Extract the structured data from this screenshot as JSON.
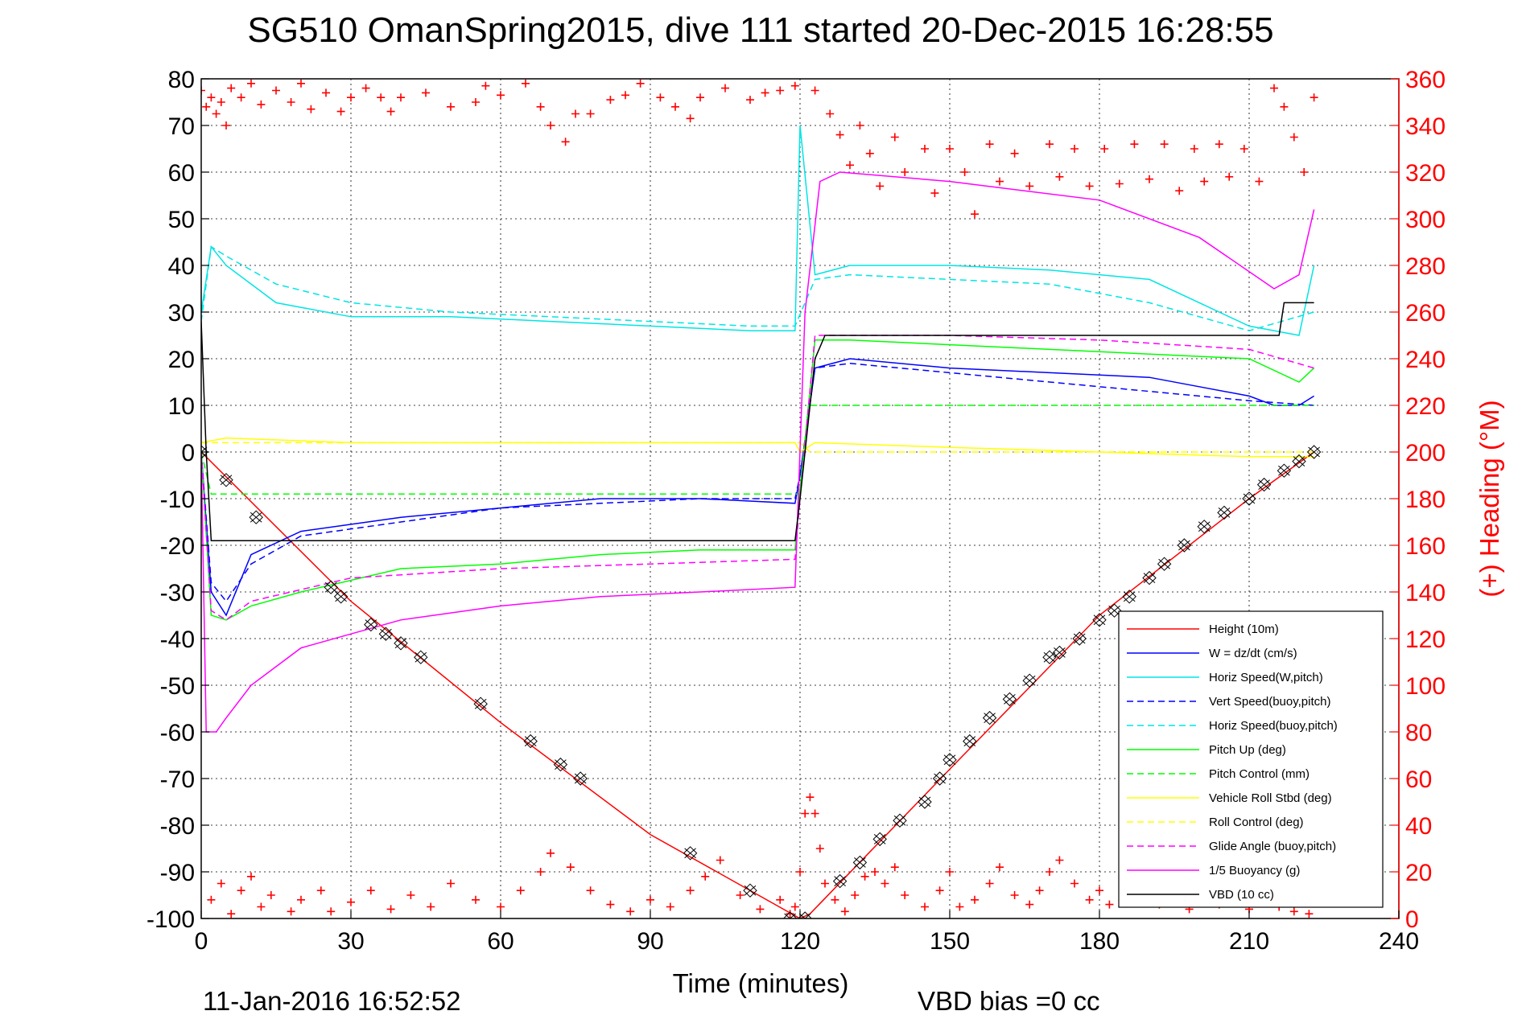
{
  "chart_data": {
    "type": "line",
    "title": "SG510 OmanSpring2015, dive 111 started 20-Dec-2015 16:28:55",
    "xlabel": "Time (minutes)",
    "ylabel": "",
    "y2label": "(+) Heading (°M)",
    "xlim": [
      0,
      240
    ],
    "ylim": [
      -100,
      80
    ],
    "y2lim": [
      0,
      360
    ],
    "x_ticks": [
      "0",
      "30",
      "60",
      "90",
      "120",
      "150",
      "180",
      "210",
      "240"
    ],
    "y_ticks": [
      "80",
      "70",
      "60",
      "50",
      "40",
      "30",
      "20",
      "10",
      "0",
      "-10",
      "-20",
      "-30",
      "-40",
      "-50",
      "-60",
      "-70",
      "-80",
      "-90",
      "-100"
    ],
    "y2_ticks": [
      "360",
      "340",
      "320",
      "300",
      "280",
      "260",
      "240",
      "220",
      "200",
      "180",
      "160",
      "140",
      "120",
      "100",
      "80",
      "60",
      "40",
      "20",
      "0"
    ],
    "grid": true,
    "legend_position": "bottom-right",
    "footer_date": "11-Jan-2016 16:52:52",
    "footer_bias": "VBD bias =0 cc",
    "series": [
      {
        "name": "Height (10m)",
        "color": "#ff0000",
        "style": "solid",
        "x": [
          0,
          30,
          60,
          90,
          120,
          122,
          150,
          180,
          210,
          223
        ],
        "y": [
          0,
          -32,
          -58,
          -82,
          -100,
          -99,
          -68,
          -35,
          -10,
          0
        ]
      },
      {
        "name": "W = dz/dt (cm/s)",
        "color": "#0000ff",
        "style": "solid",
        "x": [
          0,
          2,
          5,
          10,
          20,
          40,
          60,
          80,
          100,
          119,
          120,
          123,
          130,
          150,
          170,
          190,
          200,
          210,
          215,
          220,
          223
        ],
        "y": [
          0,
          -30,
          -35,
          -22,
          -17,
          -14,
          -12,
          -10,
          -10,
          -11,
          -5,
          18,
          20,
          18,
          17,
          16,
          14,
          12,
          10,
          10,
          12
        ]
      },
      {
        "name": "Horiz Speed(W,pitch)",
        "color": "#00e5e5",
        "style": "solid",
        "x": [
          0,
          2,
          5,
          15,
          30,
          50,
          70,
          90,
          110,
          119,
          120,
          123,
          130,
          150,
          170,
          190,
          210,
          220,
          223
        ],
        "y": [
          30,
          44,
          40,
          32,
          29,
          29,
          28,
          27,
          26,
          26,
          70,
          38,
          40,
          40,
          39,
          37,
          27,
          25,
          40
        ]
      },
      {
        "name": "Vert Speed(buoy,pitch)",
        "color": "#0000ff",
        "style": "dash",
        "x": [
          0,
          2,
          5,
          10,
          20,
          40,
          60,
          80,
          100,
          119,
          120,
          123,
          130,
          150,
          170,
          190,
          210,
          223
        ],
        "y": [
          0,
          -28,
          -32,
          -24,
          -18,
          -15,
          -12,
          -11,
          -10,
          -10,
          -5,
          18,
          19,
          17,
          15,
          13,
          11,
          10
        ]
      },
      {
        "name": "Horiz Speed(buoy,pitch)",
        "color": "#00e5e5",
        "style": "dash",
        "x": [
          0,
          2,
          5,
          15,
          30,
          50,
          70,
          90,
          110,
          119,
          123,
          130,
          150,
          170,
          190,
          210,
          223
        ],
        "y": [
          28,
          44,
          42,
          36,
          32,
          30,
          29,
          28,
          27,
          27,
          37,
          38,
          37,
          36,
          32,
          26,
          30
        ]
      },
      {
        "name": "Pitch Up (deg)",
        "color": "#00ff00",
        "style": "solid",
        "x": [
          0,
          2,
          5,
          10,
          20,
          40,
          60,
          80,
          100,
          119,
          120,
          123,
          130,
          150,
          170,
          190,
          210,
          220,
          223
        ],
        "y": [
          0,
          -35,
          -36,
          -33,
          -30,
          -25,
          -24,
          -22,
          -21,
          -21,
          -8,
          24,
          24,
          23,
          22,
          21,
          20,
          15,
          18
        ]
      },
      {
        "name": "Pitch Control (mm)",
        "color": "#00ff00",
        "style": "dash",
        "x": [
          0,
          2,
          120,
          122,
          223
        ],
        "y": [
          0,
          -9,
          -9,
          10,
          10
        ]
      },
      {
        "name": "Vehicle Roll Stbd (deg)",
        "color": "#ffff00",
        "style": "solid",
        "x": [
          0,
          5,
          30,
          60,
          90,
          119,
          120,
          123,
          150,
          180,
          210,
          223
        ],
        "y": [
          2,
          3,
          2,
          2,
          2,
          2,
          0,
          2,
          1,
          0,
          -1,
          -1
        ]
      },
      {
        "name": "Roll Control (deg)",
        "color": "#ffff00",
        "style": "dash",
        "x": [
          0,
          120,
          122,
          223
        ],
        "y": [
          2,
          2,
          0,
          0
        ]
      },
      {
        "name": "Glide Angle (buoy,pitch)",
        "color": "#ff00ff",
        "style": "dash",
        "x": [
          0,
          2,
          5,
          10,
          30,
          60,
          90,
          119,
          120,
          123,
          150,
          180,
          210,
          223
        ],
        "y": [
          0,
          -34,
          -36,
          -32,
          -27,
          -25,
          -24,
          -23,
          -10,
          25,
          25,
          24,
          22,
          18
        ]
      },
      {
        "name": "1/5 Buoyancy (g)",
        "color": "#ff00ff",
        "style": "solid",
        "x": [
          0,
          1,
          3,
          5,
          10,
          20,
          40,
          60,
          80,
          100,
          119,
          121,
          124,
          128,
          150,
          180,
          200,
          215,
          220,
          223
        ],
        "y": [
          0,
          -60,
          -60,
          -57,
          -50,
          -42,
          -36,
          -33,
          -31,
          -30,
          -29,
          30,
          58,
          60,
          58,
          54,
          46,
          35,
          38,
          52
        ]
      },
      {
        "name": "VBD (10 cc)",
        "color": "#000000",
        "style": "solid",
        "x": [
          0,
          1,
          2,
          119,
          120,
          123,
          125,
          216,
          217,
          223
        ],
        "y": [
          28,
          0,
          -19,
          -19,
          -10,
          20,
          25,
          25,
          32,
          32
        ]
      }
    ],
    "heading_series": {
      "name": "Heading",
      "color": "#ff0000",
      "points": [
        [
          0,
          355
        ],
        [
          1,
          348
        ],
        [
          2,
          352
        ],
        [
          3,
          345
        ],
        [
          4,
          350
        ],
        [
          5,
          340
        ],
        [
          6,
          356
        ],
        [
          8,
          352
        ],
        [
          10,
          358
        ],
        [
          12,
          349
        ],
        [
          15,
          355
        ],
        [
          18,
          350
        ],
        [
          20,
          358
        ],
        [
          22,
          347
        ],
        [
          25,
          354
        ],
        [
          28,
          346
        ],
        [
          30,
          352
        ],
        [
          33,
          356
        ],
        [
          36,
          352
        ],
        [
          38,
          346
        ],
        [
          40,
          352
        ],
        [
          45,
          354
        ],
        [
          50,
          348
        ],
        [
          55,
          350
        ],
        [
          57,
          357
        ],
        [
          60,
          353
        ],
        [
          65,
          358
        ],
        [
          68,
          348
        ],
        [
          70,
          340
        ],
        [
          73,
          333
        ],
        [
          75,
          345
        ],
        [
          78,
          345
        ],
        [
          82,
          351
        ],
        [
          85,
          353
        ],
        [
          88,
          358
        ],
        [
          92,
          352
        ],
        [
          95,
          348
        ],
        [
          98,
          343
        ],
        [
          100,
          352
        ],
        [
          105,
          356
        ],
        [
          110,
          351
        ],
        [
          113,
          354
        ],
        [
          116,
          355
        ],
        [
          119,
          357
        ],
        [
          123,
          355
        ],
        [
          126,
          345
        ],
        [
          128,
          336
        ],
        [
          130,
          323
        ],
        [
          132,
          340
        ],
        [
          134,
          328
        ],
        [
          136,
          314
        ],
        [
          139,
          335
        ],
        [
          141,
          320
        ],
        [
          145,
          330
        ],
        [
          147,
          311
        ],
        [
          150,
          330
        ],
        [
          153,
          320
        ],
        [
          155,
          302
        ],
        [
          158,
          332
        ],
        [
          160,
          316
        ],
        [
          163,
          328
        ],
        [
          166,
          314
        ],
        [
          170,
          332
        ],
        [
          172,
          318
        ],
        [
          175,
          330
        ],
        [
          178,
          314
        ],
        [
          181,
          330
        ],
        [
          184,
          315
        ],
        [
          187,
          332
        ],
        [
          190,
          317
        ],
        [
          193,
          332
        ],
        [
          196,
          312
        ],
        [
          199,
          330
        ],
        [
          201,
          316
        ],
        [
          204,
          332
        ],
        [
          206,
          318
        ],
        [
          209,
          330
        ],
        [
          212,
          316
        ],
        [
          215,
          356
        ],
        [
          217,
          348
        ],
        [
          219,
          335
        ],
        [
          221,
          320
        ],
        [
          223,
          352
        ],
        [
          2,
          8
        ],
        [
          4,
          15
        ],
        [
          6,
          2
        ],
        [
          8,
          12
        ],
        [
          10,
          18
        ],
        [
          12,
          5
        ],
        [
          14,
          10
        ],
        [
          18,
          3
        ],
        [
          20,
          8
        ],
        [
          24,
          12
        ],
        [
          26,
          3
        ],
        [
          30,
          7
        ],
        [
          34,
          12
        ],
        [
          38,
          4
        ],
        [
          42,
          10
        ],
        [
          46,
          5
        ],
        [
          50,
          15
        ],
        [
          55,
          8
        ],
        [
          60,
          5
        ],
        [
          64,
          12
        ],
        [
          68,
          20
        ],
        [
          70,
          28
        ],
        [
          74,
          22
        ],
        [
          78,
          12
        ],
        [
          82,
          6
        ],
        [
          86,
          3
        ],
        [
          90,
          8
        ],
        [
          94,
          5
        ],
        [
          98,
          12
        ],
        [
          101,
          18
        ],
        [
          104,
          25
        ],
        [
          108,
          10
        ],
        [
          112,
          4
        ],
        [
          116,
          8
        ],
        [
          118,
          2
        ],
        [
          119,
          5
        ],
        [
          120,
          20
        ],
        [
          121,
          45
        ],
        [
          122,
          52
        ],
        [
          123,
          45
        ],
        [
          124,
          30
        ],
        [
          125,
          15
        ],
        [
          127,
          8
        ],
        [
          129,
          3
        ],
        [
          131,
          10
        ],
        [
          133,
          18
        ],
        [
          135,
          20
        ],
        [
          137,
          15
        ],
        [
          139,
          22
        ],
        [
          141,
          10
        ],
        [
          145,
          5
        ],
        [
          148,
          12
        ],
        [
          150,
          20
        ],
        [
          152,
          5
        ],
        [
          155,
          8
        ],
        [
          158,
          15
        ],
        [
          160,
          22
        ],
        [
          163,
          10
        ],
        [
          166,
          6
        ],
        [
          168,
          12
        ],
        [
          170,
          20
        ],
        [
          172,
          25
        ],
        [
          175,
          15
        ],
        [
          178,
          8
        ],
        [
          180,
          12
        ],
        [
          182,
          6
        ],
        [
          185,
          10
        ],
        [
          188,
          12
        ],
        [
          192,
          6
        ],
        [
          195,
          10
        ],
        [
          198,
          4
        ],
        [
          201,
          12
        ],
        [
          204,
          6
        ],
        [
          207,
          10
        ],
        [
          210,
          4
        ],
        [
          213,
          8
        ],
        [
          216,
          5
        ],
        [
          219,
          3
        ],
        [
          222,
          2
        ]
      ]
    },
    "marker_points": [
      [
        0,
        0
      ],
      [
        5,
        -6
      ],
      [
        11,
        -14
      ],
      [
        26,
        -29
      ],
      [
        28,
        -31
      ],
      [
        34,
        -37
      ],
      [
        37,
        -39
      ],
      [
        40,
        -41
      ],
      [
        44,
        -44
      ],
      [
        56,
        -54
      ],
      [
        66,
        -62
      ],
      [
        72,
        -67
      ],
      [
        76,
        -70
      ],
      [
        98,
        -86
      ],
      [
        110,
        -94
      ],
      [
        118,
        -100
      ],
      [
        121,
        -100
      ],
      [
        128,
        -92
      ],
      [
        132,
        -88
      ],
      [
        136,
        -83
      ],
      [
        140,
        -79
      ],
      [
        145,
        -75
      ],
      [
        148,
        -70
      ],
      [
        150,
        -66
      ],
      [
        154,
        -62
      ],
      [
        158,
        -57
      ],
      [
        162,
        -53
      ],
      [
        166,
        -49
      ],
      [
        170,
        -44
      ],
      [
        172,
        -43
      ],
      [
        176,
        -40
      ],
      [
        180,
        -36
      ],
      [
        183,
        -34
      ],
      [
        186,
        -31
      ],
      [
        190,
        -27
      ],
      [
        193,
        -24
      ],
      [
        197,
        -20
      ],
      [
        201,
        -16
      ],
      [
        205,
        -13
      ],
      [
        210,
        -10
      ],
      [
        213,
        -7
      ],
      [
        217,
        -4
      ],
      [
        220,
        -2
      ],
      [
        223,
        0
      ]
    ]
  }
}
